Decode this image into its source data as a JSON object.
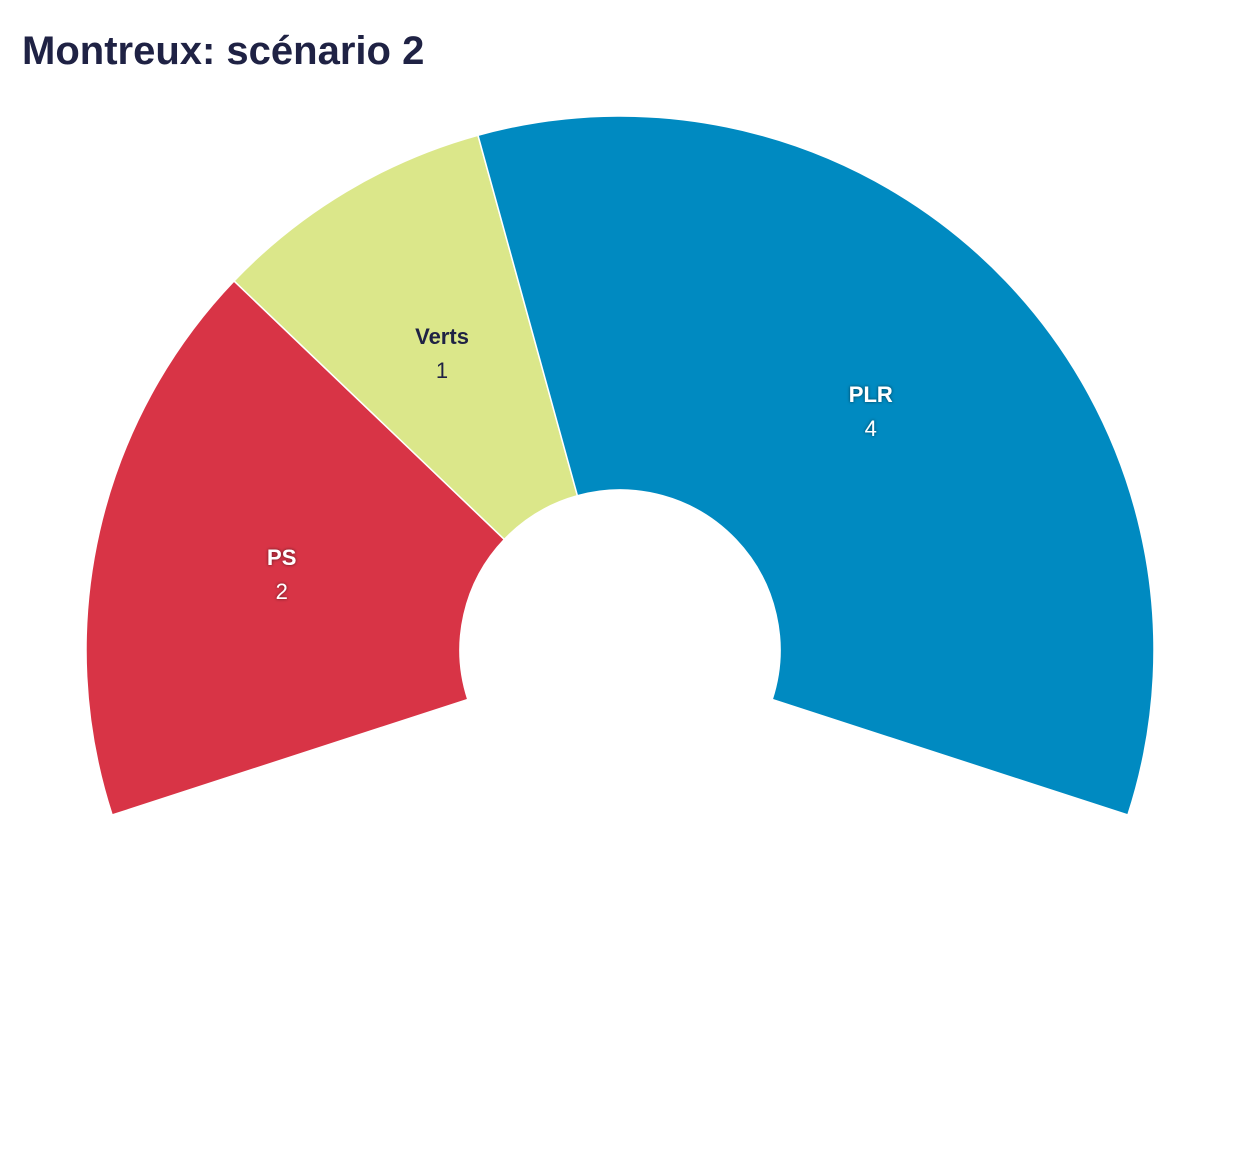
{
  "chart_data": {
    "type": "pie",
    "title": "Montreux: scénario 2",
    "categories": [
      "PS",
      "Verts",
      "PLR"
    ],
    "values": [
      2,
      1,
      4
    ],
    "colors": [
      "#d83446",
      "#dbe78a",
      "#008ac1"
    ]
  }
}
